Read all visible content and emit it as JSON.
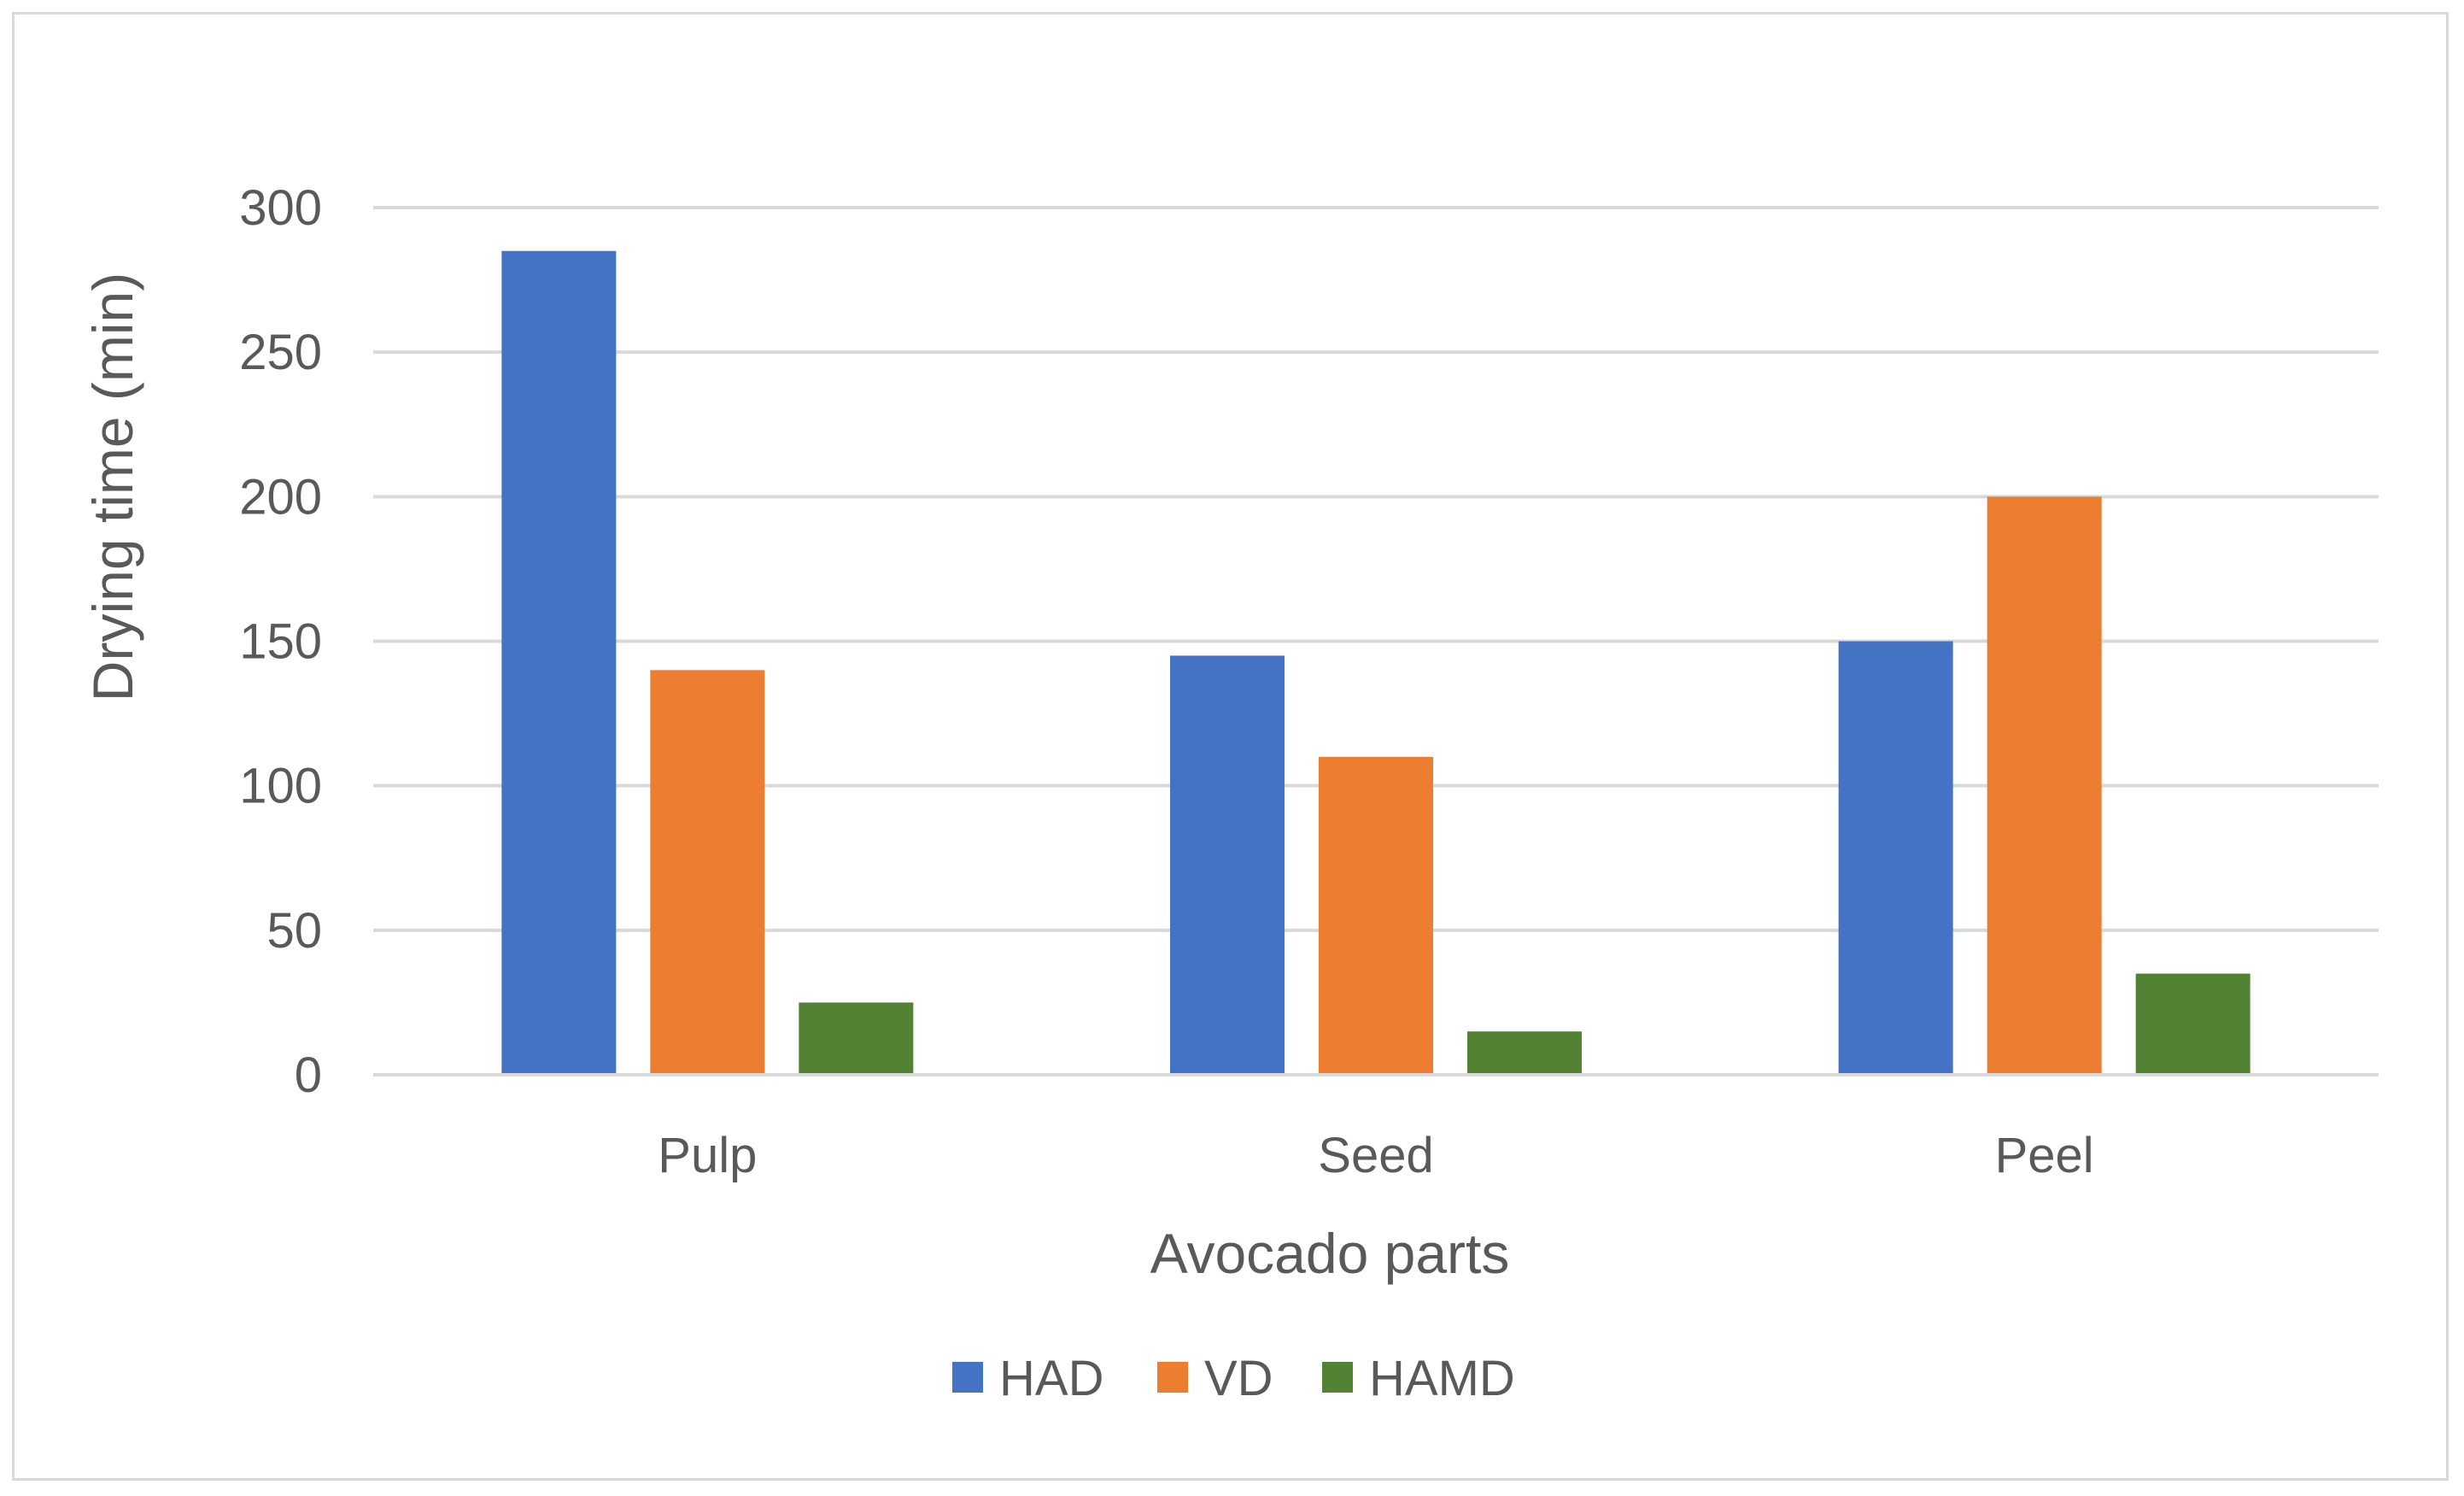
{
  "chart_data": {
    "type": "bar",
    "title": "",
    "xlabel": "Avocado parts",
    "ylabel": "Drying time (min)",
    "categories": [
      "Pulp",
      "Seed",
      "Peel"
    ],
    "series": [
      {
        "name": "HAD",
        "color": "#4472c4",
        "values": [
          285,
          145,
          150
        ]
      },
      {
        "name": "VD",
        "color": "#ed7d31",
        "values": [
          140,
          110,
          200
        ]
      },
      {
        "name": "HAMD",
        "color": "#548235",
        "values": [
          25,
          15,
          35
        ]
      }
    ],
    "ylim": [
      0,
      300
    ],
    "yticks": [
      0,
      50,
      100,
      150,
      200,
      250,
      300
    ],
    "grid": true,
    "gridColor": "#d9d9d9",
    "legend_position": "bottom"
  }
}
